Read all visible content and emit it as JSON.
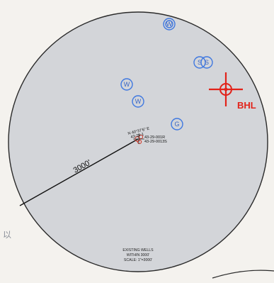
{
  "map": {
    "radius_label": "3000'",
    "bhl_label": "BHL",
    "center_labels": [
      "N 40°37'6\" E",
      "43-29-1",
      "43-29-001R",
      "43-29-0013S"
    ],
    "wells": [
      {
        "letter": "W"
      },
      {
        "letter": "S"
      },
      {
        "letter": "S"
      },
      {
        "letter": "W"
      },
      {
        "letter": "W"
      },
      {
        "letter": "G"
      }
    ],
    "footer": {
      "line1": "EXISTING WELLS",
      "line2": "WITHIN 3000'",
      "line3": "SCALE: 1\"=3000'"
    },
    "side_mark": "以",
    "colors": {
      "circle_fill": "#d3d5d9",
      "circle_stroke": "#2a2a2a",
      "well_blue": "#3f78e0",
      "bhl_red": "#e2231a"
    }
  }
}
